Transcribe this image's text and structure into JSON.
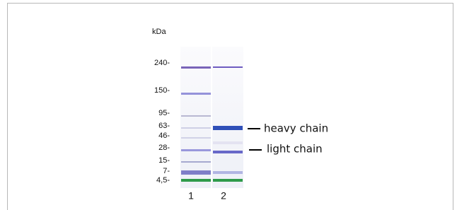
{
  "unit": "kDa",
  "markers": [
    "240-",
    "150-",
    "95-",
    "63-",
    "46-",
    "28-",
    "15-",
    "7-",
    "4,5-"
  ],
  "lanes": [
    "1",
    "2"
  ],
  "annotations": [
    "heavy chain",
    "light chain"
  ]
}
